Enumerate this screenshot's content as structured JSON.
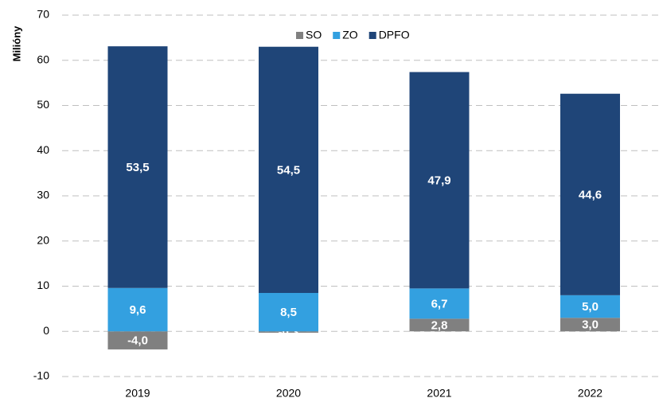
{
  "chart_data": {
    "type": "stacked_bar",
    "y_label": "Milióny",
    "categories": [
      "2019",
      "2020",
      "2021",
      "2022"
    ],
    "series": [
      {
        "name": "SO",
        "color": "#808080",
        "values": [
          -4.0,
          -0.3,
          2.8,
          3.0
        ],
        "value_labels": [
          "-4,0",
          "-0,3",
          "2,8",
          "3,0"
        ]
      },
      {
        "name": "ZO",
        "color": "#33a0e0",
        "values": [
          9.6,
          8.5,
          6.7,
          5.0
        ],
        "value_labels": [
          "9,6",
          "8,5",
          "6,7",
          "5,0"
        ]
      },
      {
        "name": "DPFO",
        "color": "#1f4578",
        "values": [
          53.5,
          54.5,
          47.9,
          44.6
        ],
        "value_labels": [
          "53,5",
          "54,5",
          "47,9",
          "44,6"
        ]
      }
    ],
    "ylim": [
      -10,
      70
    ],
    "yticks": [
      -10,
      0,
      10,
      20,
      30,
      40,
      50,
      60,
      70
    ],
    "grid": true
  }
}
